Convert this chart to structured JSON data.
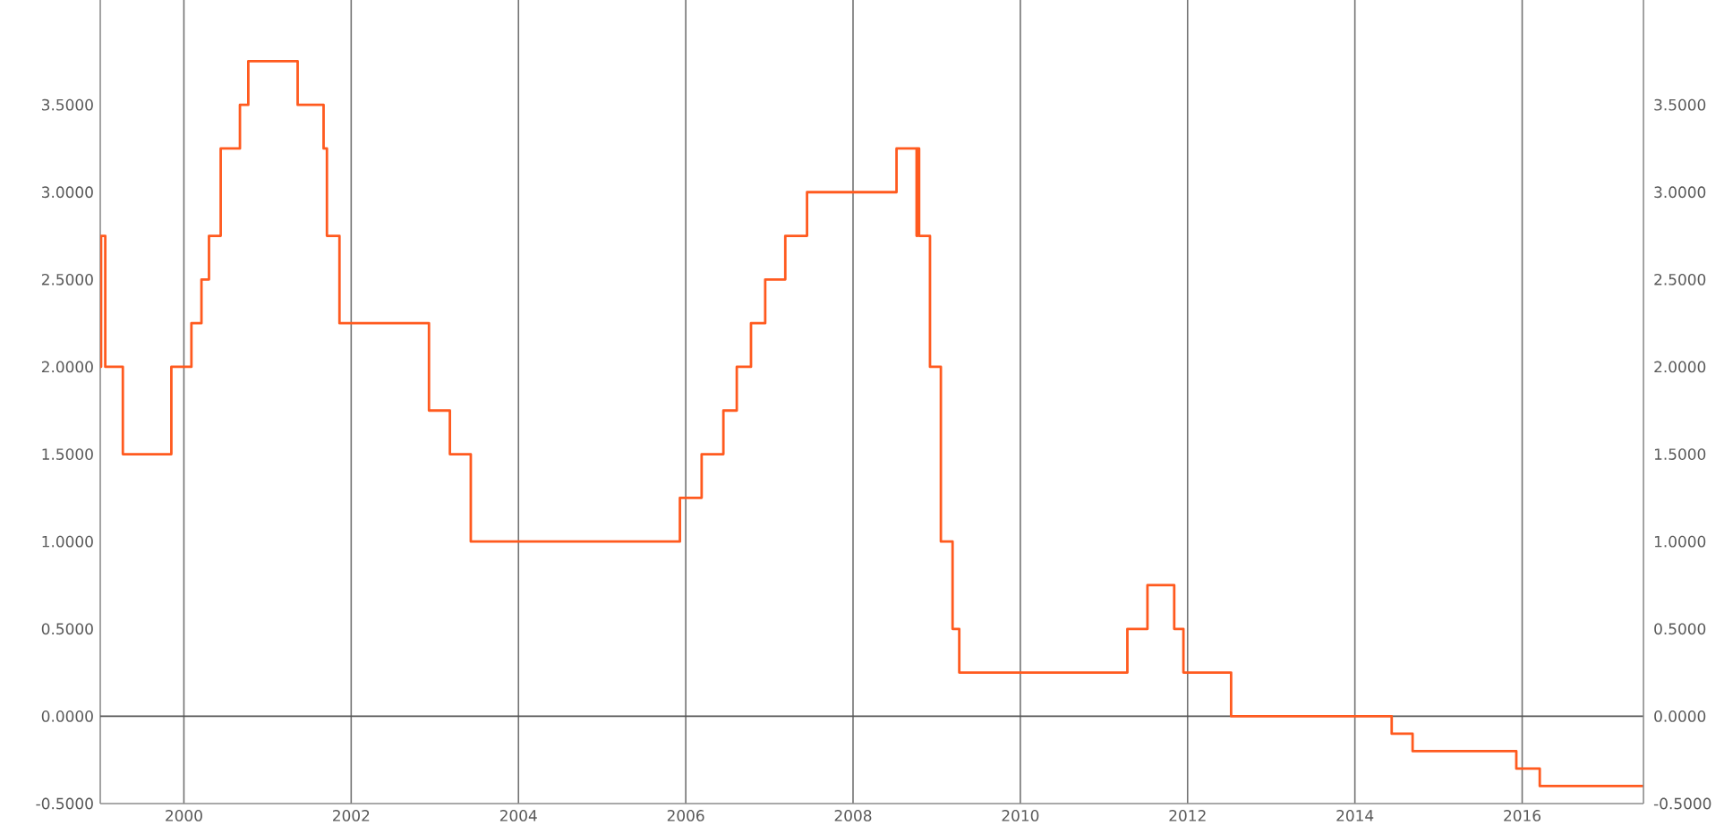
{
  "chart_data": {
    "type": "step",
    "x": [
      1999.0,
      1999.01,
      1999.06,
      1999.27,
      1999.85,
      2000.09,
      2000.21,
      2000.3,
      2000.44,
      2000.67,
      2000.77,
      2001.36,
      2001.67,
      2001.71,
      2001.86,
      2002.93,
      2003.18,
      2003.43,
      2005.93,
      2006.19,
      2006.45,
      2006.61,
      2006.78,
      2006.95,
      2007.19,
      2007.45,
      2008.52,
      2008.76,
      2008.77,
      2008.79,
      2008.92,
      2009.05,
      2009.19,
      2009.27,
      2011.28,
      2011.52,
      2011.84,
      2011.95,
      2012.52,
      2014.44,
      2014.69,
      2015.93,
      2016.21,
      2017.45
    ],
    "series": [
      {
        "color": "#ff5a1f",
        "values": [
          2.0,
          2.75,
          2.0,
          1.5,
          2.0,
          2.25,
          2.5,
          2.75,
          3.25,
          3.5,
          3.75,
          3.5,
          3.25,
          2.75,
          2.25,
          1.75,
          1.5,
          1.0,
          1.25,
          1.5,
          1.75,
          2.0,
          2.25,
          2.5,
          2.75,
          3.0,
          3.25,
          2.75,
          3.25,
          2.75,
          2.0,
          1.0,
          0.5,
          0.25,
          0.5,
          0.75,
          0.5,
          0.25,
          0.0,
          -0.1,
          -0.2,
          -0.3,
          -0.4,
          -0.4
        ]
      }
    ],
    "xlim": [
      1999,
      2017.45
    ],
    "xticks": [
      2000,
      2002,
      2004,
      2006,
      2008,
      2010,
      2012,
      2014,
      2016
    ],
    "ylim": [
      -0.5,
      4.1
    ],
    "yticks": [
      {
        "value": -0.5,
        "label": "-0.5000"
      },
      {
        "value": 0,
        "label": "0.0000"
      },
      {
        "value": 0.5,
        "label": "0.5000"
      },
      {
        "value": 1,
        "label": "1.0000"
      },
      {
        "value": 1.5,
        "label": "1.5000"
      },
      {
        "value": 2,
        "label": "2.0000"
      },
      {
        "value": 2.5,
        "label": "2.5000"
      },
      {
        "value": 3,
        "label": "3.0000"
      },
      {
        "value": 3.5,
        "label": "3.5000"
      }
    ],
    "y2lim": [
      -0.5,
      4.1
    ],
    "y2ticks": [
      {
        "value": -0.5,
        "label": "-0.5000"
      },
      {
        "value": 0,
        "label": "0.0000"
      },
      {
        "value": 0.5,
        "label": "0.5000"
      },
      {
        "value": 1,
        "label": "1.0000"
      },
      {
        "value": 1.5,
        "label": "1.5000"
      },
      {
        "value": 2,
        "label": "2.0000"
      },
      {
        "value": 2.5,
        "label": "2.5000"
      },
      {
        "value": 3,
        "label": "3.0000"
      },
      {
        "value": 3.5,
        "label": "3.5000"
      }
    ],
    "ref_lines": [
      {
        "axis": "y",
        "value": 0,
        "color": "#555555"
      }
    ],
    "grid": "x",
    "line_style": "solid"
  }
}
